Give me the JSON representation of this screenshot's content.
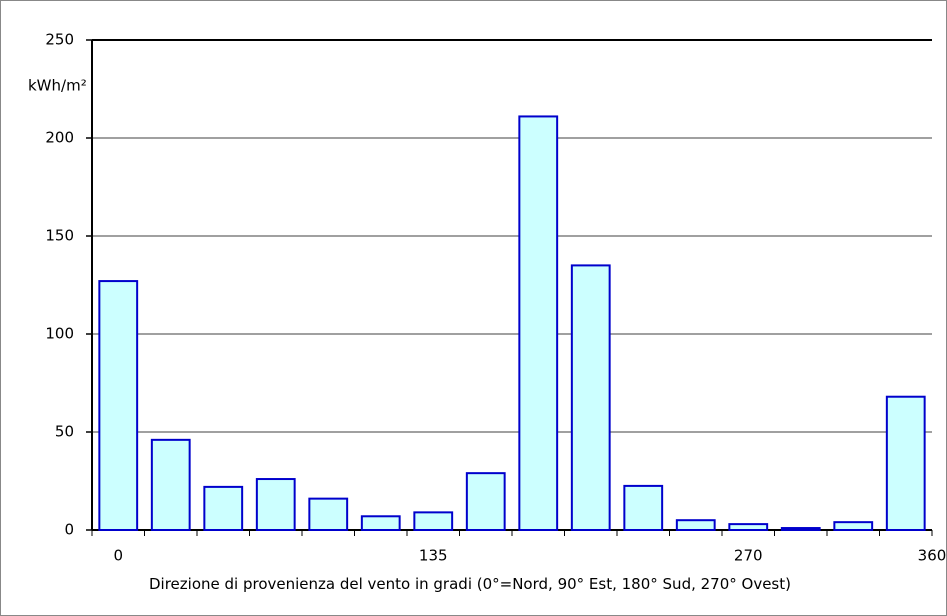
{
  "chart_data": {
    "type": "bar",
    "y_label": "kWh/m²",
    "x_label": "Direzione di provenienza del vento in gradi (0°=Nord, 90° Est, 180° Sud, 270° Ovest)",
    "categories": [
      "0",
      null,
      null,
      null,
      null,
      null,
      "135",
      null,
      null,
      null,
      null,
      null,
      "270",
      null,
      null,
      null
    ],
    "x_end_label": "360",
    "values": [
      127,
      46,
      22,
      26,
      16,
      7,
      9,
      29,
      211,
      135,
      22.5,
      5,
      3,
      1,
      4,
      68
    ],
    "color": "#ccffff",
    "edge_color": "#0000cc",
    "ylim": [
      0,
      250
    ],
    "yticks": [
      0,
      50,
      100,
      150,
      200,
      250
    ],
    "grid": true
  }
}
